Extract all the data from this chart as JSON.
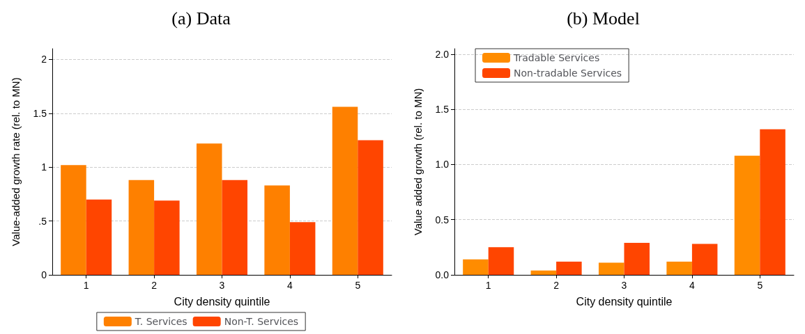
{
  "chart_data": [
    {
      "type": "bar",
      "title": "(a) Data",
      "xlabel": "City density quintile",
      "ylabel": "Value-added growth rate (rel. to MN)",
      "categories": [
        "1",
        "2",
        "3",
        "4",
        "5"
      ],
      "series": [
        {
          "name": "T. Services",
          "color": "#fe8000",
          "values": [
            1.02,
            0.88,
            1.22,
            0.83,
            1.56
          ]
        },
        {
          "name": "Non-T. Services",
          "color": "#ff4500",
          "values": [
            0.7,
            0.69,
            0.88,
            0.49,
            1.25
          ]
        }
      ],
      "ylim": [
        0,
        2.1
      ],
      "yticks": [
        0,
        {
          "value": 0.5,
          "label": ".5"
        },
        1,
        1.5,
        2
      ],
      "grid": "y",
      "legend": "bottom"
    },
    {
      "type": "bar",
      "title": "(b) Model",
      "xlabel": "City density quintile",
      "ylabel": "Value added growth (rel. to MN)",
      "categories": [
        "1",
        "2",
        "3",
        "4",
        "5"
      ],
      "series": [
        {
          "name": "Tradable Services",
          "color": "#ff8c00",
          "values": [
            0.14,
            0.04,
            0.11,
            0.12,
            1.08
          ]
        },
        {
          "name": "Non-tradable Services",
          "color": "#ff4500",
          "values": [
            0.25,
            0.12,
            0.29,
            0.28,
            1.32
          ]
        }
      ],
      "ylim": [
        0,
        2.05
      ],
      "yticks": [
        {
          "value": 0,
          "label": "0.0"
        },
        0.5,
        {
          "value": 1,
          "label": "1.0"
        },
        1.5,
        {
          "value": 2,
          "label": "2.0"
        }
      ],
      "grid": "y",
      "legend": "top left"
    }
  ]
}
